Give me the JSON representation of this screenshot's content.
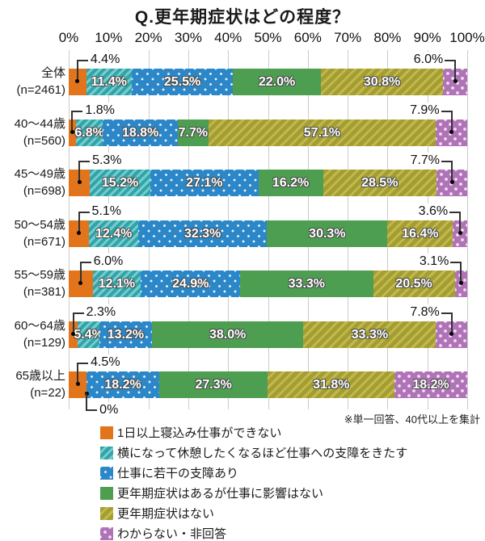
{
  "title": "Q.更年期症状はどの程度？",
  "note": "※単一回答、40代以上を集計",
  "colors": {
    "grid": "#cccccc",
    "series": [
      "#E2751C",
      "#2CA6AA",
      "#2B87C8",
      "#4E9E51",
      "#A49E32",
      "#B173B7"
    ],
    "callout_line": "#333333",
    "segment_label_text": "#ffffff"
  },
  "chart_data": {
    "type": "bar",
    "stacked": true,
    "orientation": "horizontal",
    "title": "Q.更年期症状はどの程度？",
    "x_ticks": [
      "0%",
      "10%",
      "20%",
      "30%",
      "40%",
      "50%",
      "60%",
      "70%",
      "80%",
      "90%",
      "100%"
    ],
    "xlim": [
      0,
      100
    ],
    "grid": true,
    "legend_position": "bottom",
    "series": [
      {
        "name": "1日以上寝込み仕事ができない",
        "color": "#E2751C",
        "pattern": "solid",
        "values": [
          4.4,
          1.8,
          5.3,
          5.1,
          6.0,
          2.3,
          4.5
        ]
      },
      {
        "name": "横になって休憩したくなるほど仕事への支障をきたす",
        "color": "#2CA6AA",
        "pattern": "diagonal-stripes",
        "values": [
          11.4,
          6.8,
          15.2,
          12.4,
          12.1,
          5.4,
          0
        ]
      },
      {
        "name": "仕事に若干の支障あり",
        "color": "#2B87C8",
        "pattern": "dots",
        "values": [
          25.5,
          18.8,
          27.1,
          32.3,
          24.9,
          13.2,
          18.2
        ]
      },
      {
        "name": "更年期症状はあるが仕事に影響はない",
        "color": "#4E9E51",
        "pattern": "solid",
        "values": [
          22.0,
          7.7,
          16.2,
          30.3,
          33.3,
          38.0,
          27.3
        ]
      },
      {
        "name": "更年期症状はない",
        "color": "#A49E32",
        "pattern": "diagonal-stripes",
        "values": [
          30.8,
          57.1,
          28.5,
          16.4,
          20.5,
          33.3,
          31.8
        ]
      },
      {
        "name": "わからない・非回答",
        "color": "#B173B7",
        "pattern": "dots",
        "values": [
          6.0,
          7.9,
          7.7,
          3.6,
          3.1,
          7.8,
          18.2
        ]
      }
    ],
    "rows": [
      {
        "label": "全体",
        "n": "(n=2461)",
        "values": [
          4.4,
          11.4,
          25.5,
          22.0,
          30.8,
          6.0
        ],
        "display": [
          "4.4%",
          "11.4%",
          "25.5%",
          "22.0%",
          "30.8%",
          "6.0%"
        ],
        "callout_top": [
          0,
          5
        ],
        "callout_bottom": []
      },
      {
        "label": "40〜44歳",
        "n": "(n=560)",
        "values": [
          1.8,
          6.8,
          18.8,
          7.7,
          57.1,
          7.9
        ],
        "display": [
          "1.8%",
          "6.8%",
          "18.8%",
          "7.7%",
          "57.1%",
          "7.9%"
        ],
        "callout_top": [
          0,
          5
        ],
        "callout_bottom": []
      },
      {
        "label": "45〜49歳",
        "n": "(n=698)",
        "values": [
          5.3,
          15.2,
          27.1,
          16.2,
          28.5,
          7.7
        ],
        "display": [
          "5.3%",
          "15.2%",
          "27.1%",
          "16.2%",
          "28.5%",
          "7.7%"
        ],
        "callout_top": [
          0,
          5
        ],
        "callout_bottom": []
      },
      {
        "label": "50〜54歳",
        "n": "(n=671)",
        "values": [
          5.1,
          12.4,
          32.3,
          30.3,
          16.4,
          3.6
        ],
        "display": [
          "5.1%",
          "12.4%",
          "32.3%",
          "30.3%",
          "16.4%",
          "3.6%"
        ],
        "callout_top": [
          0,
          5
        ],
        "callout_bottom": []
      },
      {
        "label": "55〜59歳",
        "n": "(n=381)",
        "values": [
          6.0,
          12.1,
          24.9,
          33.3,
          20.5,
          3.1
        ],
        "display": [
          "6.0%",
          "12.1%",
          "24.9%",
          "33.3%",
          "20.5%",
          "3.1%"
        ],
        "callout_top": [
          0,
          5
        ],
        "callout_bottom": []
      },
      {
        "label": "60〜64歳",
        "n": "(n=129)",
        "values": [
          2.3,
          5.4,
          13.2,
          38.0,
          33.3,
          7.8
        ],
        "display": [
          "2.3%",
          "5.4%",
          "13.2%",
          "38.0%",
          "33.3%",
          "7.8%"
        ],
        "callout_top": [
          0,
          5
        ],
        "callout_bottom": []
      },
      {
        "label": "65歳以上",
        "n": "(n=22)",
        "values": [
          4.5,
          0,
          18.2,
          27.3,
          31.8,
          18.2
        ],
        "display": [
          "4.5%",
          "0%",
          "18.2%",
          "27.3%",
          "31.8%",
          "18.2%"
        ],
        "callout_top": [
          0
        ],
        "callout_bottom": [
          1
        ]
      }
    ]
  }
}
